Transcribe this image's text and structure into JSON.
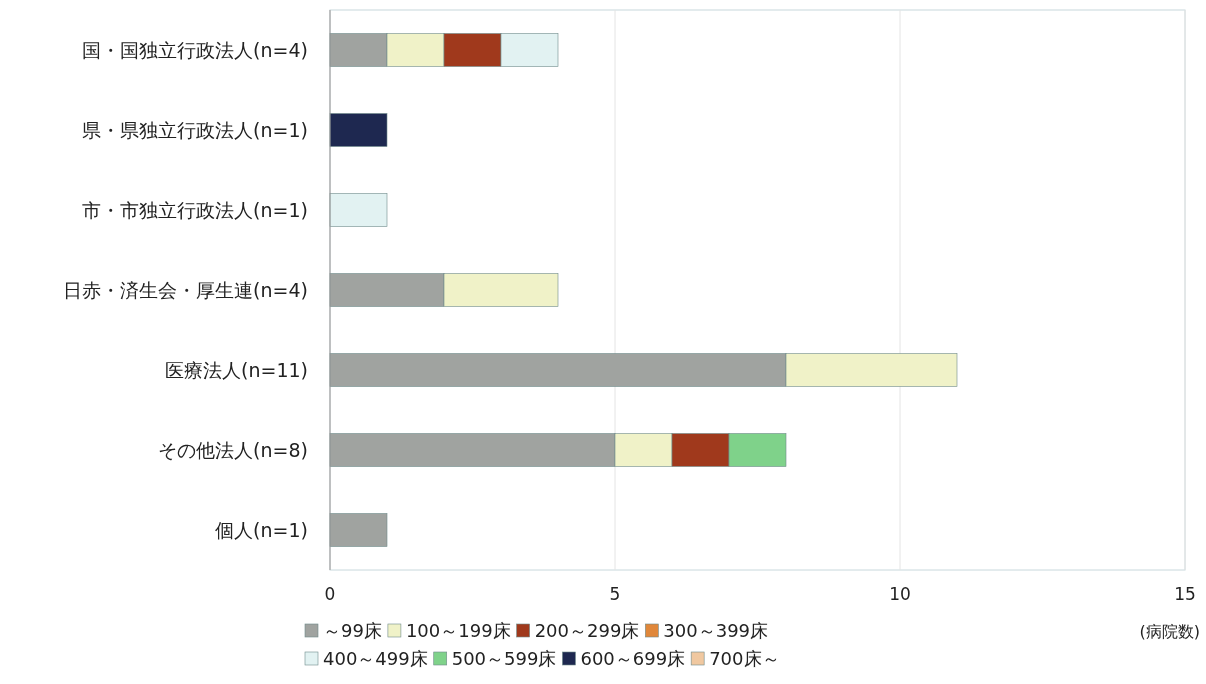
{
  "chart_data": {
    "type": "bar",
    "orientation": "horizontal",
    "stacked": true,
    "categories": [
      "国・国独立行政法人(n=4)",
      "県・県独立行政法人(n=1)",
      "市・市独立行政法人(n=1)",
      "日赤・済生会・厚生連(n=4)",
      "医療法人(n=11)",
      "その他法人(n=8)",
      "個人(n=1)"
    ],
    "series": [
      {
        "name": "～99床",
        "color": "#a0a3a0",
        "values": [
          1,
          null,
          null,
          2,
          8,
          5,
          1
        ]
      },
      {
        "name": "100～199床",
        "color": "#f0f2c8",
        "values": [
          1,
          null,
          null,
          2,
          3,
          1,
          null
        ]
      },
      {
        "name": "200～299床",
        "color": "#a0391c",
        "values": [
          1,
          null,
          null,
          null,
          null,
          1,
          null
        ]
      },
      {
        "name": "300～399床",
        "color": "#e0873a",
        "values": [
          null,
          null,
          null,
          null,
          null,
          null,
          null
        ]
      },
      {
        "name": "400～499床",
        "color": "#e2f2f2",
        "values": [
          1,
          null,
          1,
          null,
          null,
          null,
          null
        ]
      },
      {
        "name": "500～599床",
        "color": "#7fd28a",
        "values": [
          null,
          null,
          null,
          null,
          null,
          1,
          null
        ]
      },
      {
        "name": "600～699床",
        "color": "#1e2850",
        "values": [
          null,
          1,
          null,
          null,
          null,
          null,
          null
        ]
      },
      {
        "name": "700床～",
        "color": "#f0c8a0",
        "values": [
          null,
          null,
          null,
          null,
          null,
          null,
          null
        ]
      }
    ],
    "xlim": [
      0,
      15
    ],
    "xticks": [
      0,
      5,
      10,
      15
    ],
    "xlabel": "(病院数)",
    "grid": "x",
    "legend": "bottom"
  }
}
